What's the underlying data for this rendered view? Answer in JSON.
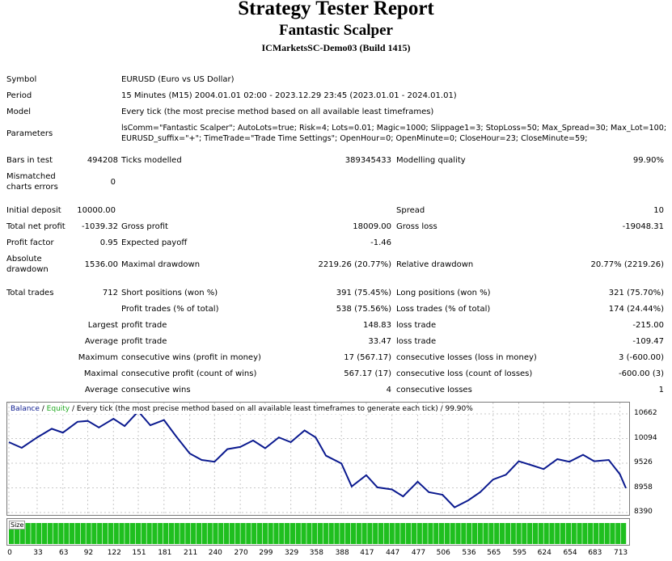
{
  "header": {
    "title": "Strategy Tester Report",
    "ea_name": "Fantastic Scalper",
    "server": "ICMarketsSC-Demo03 (Build 1415)"
  },
  "info": {
    "symbol_label": "Symbol",
    "symbol_value": "EURUSD (Euro vs US Dollar)",
    "period_label": "Period",
    "period_value": "15 Minutes (M15) 2004.01.01 02:00 - 2023.12.29 23:45 (2023.01.01 - 2024.01.01)",
    "model_label": "Model",
    "model_value": "Every tick (the most precise method based on all available least timeframes)",
    "params_label": "Parameters",
    "params_line1": "lsComm=\"Fantastic Scalper\"; AutoLots=true; Risk=4; Lots=0.01; Magic=1000; Slippage1=3; StopLoss=50; Max_Spread=30; Max_Lot=100;",
    "params_line2": "EURUSD_suffix=\"+\"; TimeTrade=\"Trade Time Settings\"; OpenHour=0; OpenMinute=0; CloseHour=23; CloseMinute=59;"
  },
  "stats": {
    "bars_label": "Bars in test",
    "bars_value": "494208",
    "ticks_label": "Ticks modelled",
    "ticks_value": "389345433",
    "quality_label": "Modelling quality",
    "quality_value": "99.90%",
    "mismatch_label_1": "Mismatched",
    "mismatch_label_2": "charts errors",
    "mismatch_value": "0",
    "deposit_label": "Initial deposit",
    "deposit_value": "10000.00",
    "spread_label": "Spread",
    "spread_value": "10",
    "netprofit_label": "Total net profit",
    "netprofit_value": "-1039.32",
    "grossprofit_label": "Gross profit",
    "grossprofit_value": "18009.00",
    "grossloss_label": "Gross loss",
    "grossloss_value": "-19048.31",
    "pf_label": "Profit factor",
    "pf_value": "0.95",
    "payoff_label": "Expected payoff",
    "payoff_value": "-1.46",
    "absdd_label_1": "Absolute",
    "absdd_label_2": "drawdown",
    "absdd_value": "1536.00",
    "maxdd_label": "Maximal drawdown",
    "maxdd_value": "2219.26 (20.77%)",
    "reldd_label": "Relative drawdown",
    "reldd_value": "20.77% (2219.26)",
    "trades_label": "Total trades",
    "trades_value": "712",
    "short_label": "Short positions (won %)",
    "short_value": "391 (75.45%)",
    "long_label": "Long positions (won %)",
    "long_value": "321 (75.70%)",
    "ptrades_label": "Profit trades (% of total)",
    "ptrades_value": "538 (75.56%)",
    "ltrades_label": "Loss trades (% of total)",
    "ltrades_value": "174 (24.44%)",
    "largest_label": "Largest",
    "largest_p_label": "profit trade",
    "largest_p_value": "148.83",
    "largest_l_label": "loss trade",
    "largest_l_value": "-215.00",
    "average_label": "Average",
    "average_p_label": "profit trade",
    "average_p_value": "33.47",
    "average_l_label": "loss trade",
    "average_l_value": "-109.47",
    "maximum_label": "Maximum",
    "max_cw_label": "consecutive wins (profit in money)",
    "max_cw_value": "17 (567.17)",
    "max_cl_label": "consecutive losses (loss in money)",
    "max_cl_value": "3 (-600.00)",
    "maximal_label": "Maximal",
    "maximal_cp_label": "consecutive profit (count of wins)",
    "maximal_cp_value": "567.17 (17)",
    "maximal_cl_label": "consecutive loss (count of losses)",
    "maximal_cl_value": "-600.00 (3)",
    "avg2_label": "Average",
    "avg_cw_label": "consecutive wins",
    "avg_cw_value": "4",
    "avg_cl_label": "consecutive losses",
    "avg_cl_value": "1"
  },
  "chart_legend": {
    "balance": "Balance",
    "sep1": " / ",
    "equity": "Equity",
    "rest": " / Every tick (the most precise method based on all available least timeframes to generate each tick) / 99.90%",
    "size_label": "Size",
    "balance_color": "#0b1a8f",
    "equity_color": "#22aa22",
    "size_color": "#1fbf1f"
  },
  "chart_data": {
    "type": "line",
    "title": "",
    "xlabel": "",
    "ylabel": "",
    "ylim": [
      8390,
      10900
    ],
    "y_ticks": [
      10662,
      10094,
      9526,
      8958,
      8390
    ],
    "x_ticks": [
      0,
      33,
      63,
      92,
      122,
      151,
      181,
      211,
      240,
      270,
      299,
      329,
      358,
      388,
      417,
      447,
      477,
      506,
      536,
      565,
      595,
      624,
      654,
      683,
      713
    ],
    "xlim": [
      0,
      720
    ],
    "grid": true,
    "series": [
      {
        "name": "Balance",
        "x": [
          0,
          15,
          33,
          50,
          63,
          80,
          92,
          105,
          122,
          135,
          151,
          165,
          181,
          195,
          211,
          225,
          240,
          255,
          270,
          285,
          299,
          315,
          329,
          345,
          358,
          370,
          388,
          400,
          417,
          430,
          447,
          460,
          477,
          490,
          506,
          520,
          536,
          550,
          565,
          580,
          595,
          610,
          624,
          640,
          654,
          670,
          683,
          700,
          713,
          720
        ],
        "y": [
          10010,
          9880,
          10120,
          10320,
          10230,
          10480,
          10500,
          10350,
          10550,
          10380,
          10720,
          10400,
          10520,
          10150,
          9750,
          9600,
          9560,
          9850,
          9900,
          10050,
          9870,
          10120,
          10010,
          10280,
          10120,
          9700,
          9520,
          8990,
          9250,
          8970,
          8920,
          8760,
          9100,
          8860,
          8800,
          8510,
          8670,
          8860,
          9150,
          9260,
          9570,
          9480,
          9390,
          9620,
          9560,
          9720,
          9570,
          9600,
          9270,
          8950
        ]
      }
    ],
    "size_series": {
      "name": "Size",
      "values_note": "uniform volume bars"
    }
  }
}
